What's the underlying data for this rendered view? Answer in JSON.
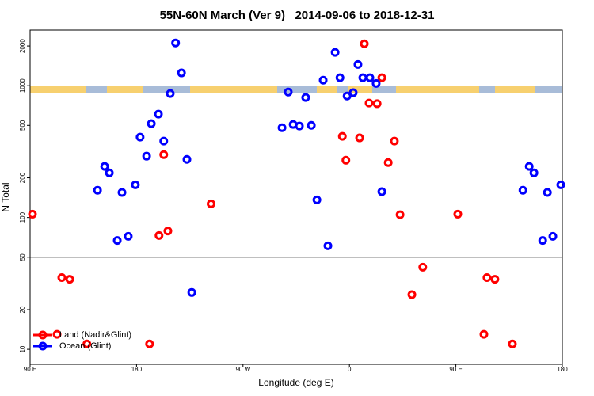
{
  "chart_data": {
    "type": "scatter",
    "title": "55N-60N March (Ver 9)   2014-09-06 to 2018-12-31",
    "x_label": "Longitude (deg E)",
    "y_label": "N Total",
    "log_y": true,
    "legend": "bottom-left",
    "xlim": [
      90,
      540
    ],
    "ylim": [
      7.7,
      2640
    ],
    "xticks": [
      {
        "value": 90,
        "label": "90 E"
      },
      180,
      {
        "value": 270,
        "label": "90 W"
      },
      {
        "value": 360,
        "label": "0"
      },
      {
        "value": 450,
        "label": "90 E"
      },
      {
        "value": 540,
        "label": "180"
      }
    ],
    "yticks": [
      10,
      20,
      50,
      100,
      200,
      500,
      1000,
      2000
    ],
    "reference_line": 50,
    "series": [
      {
        "name": "Land (Nadir&Glint)",
        "color": "#ff0000",
        "x": [
          92,
          116.8,
          123.5,
          112.8,
          138,
          191,
          199,
          206.5,
          203,
          243,
          354,
          357,
          368.6,
          372.6,
          376.6,
          383.4,
          387.4,
          392.8,
          398,
          402.8,
          412.8,
          422,
          451.6,
          473.7,
          476.3,
          483,
          497.8
        ],
        "values": [
          106,
          35,
          34,
          13,
          11,
          11,
          73,
          79,
          300,
          127,
          413,
          272,
          402,
          2080,
          738,
          730,
          1150,
          261,
          380,
          105,
          26,
          42,
          106,
          13,
          35,
          34,
          11
        ]
      },
      {
        "name": "Ocean (Glint)",
        "color": "#0000ff",
        "x": [
          147,
          153,
          157,
          163.7,
          167.7,
          173,
          179,
          183,
          188.5,
          192.5,
          198.5,
          203,
          208.5,
          213,
          218,
          222.6,
          226.7,
          303,
          308.3,
          312.4,
          317.7,
          323,
          327.8,
          332.5,
          337.8,
          341.8,
          347.9,
          352,
          358,
          363.2,
          367.2,
          371.3,
          377.3,
          382.6,
          387.4,
          506.7,
          512,
          516,
          523.4,
          527.4,
          532,
          538.7
        ],
        "values": [
          161,
          244,
          218,
          67,
          155,
          72,
          177,
          407,
          292,
          515,
          608,
          380,
          871,
          2110,
          1250,
          276,
          27,
          480,
          895,
          508,
          494,
          813,
          500,
          136,
          1100,
          61,
          1790,
          1150,
          835,
          885,
          1450,
          1150,
          1150,
          1040,
          157,
          161,
          244,
          218,
          67,
          155,
          72,
          177
        ]
      }
    ]
  }
}
